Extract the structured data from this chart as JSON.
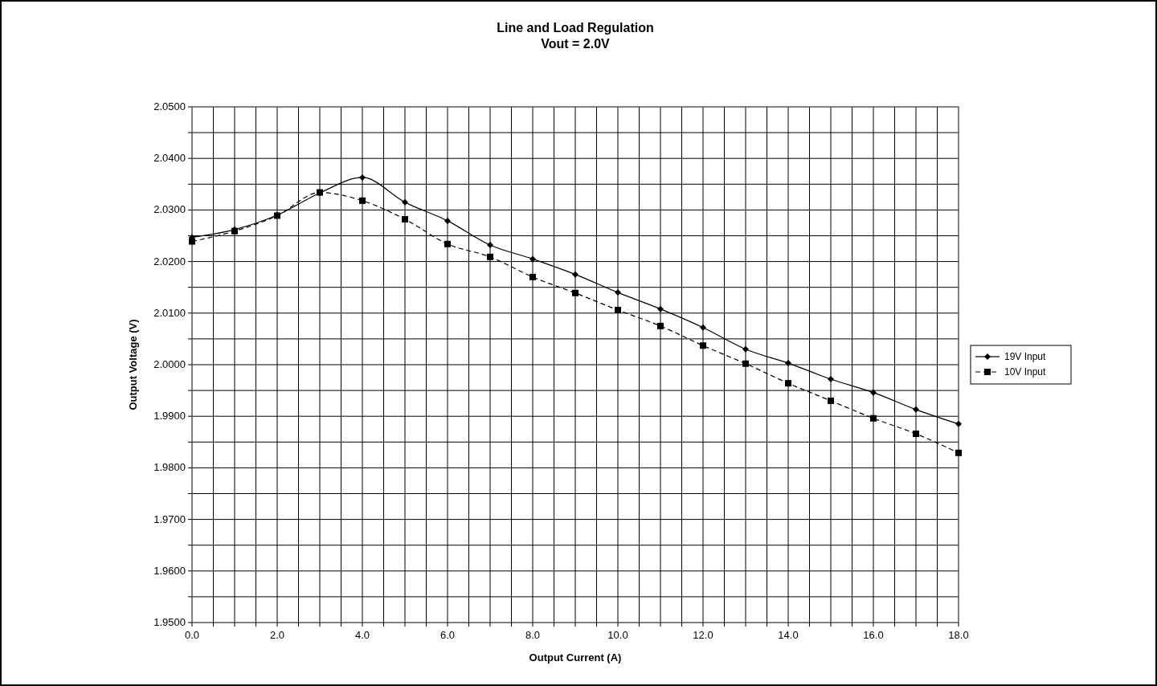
{
  "chart_data": {
    "type": "line",
    "title": "Line and Load Regulation",
    "subtitle": "Vout = 2.0V",
    "xlabel": "Output Current (A)",
    "ylabel": "Output Voltage (V)",
    "x": [
      0,
      1,
      2,
      3,
      4,
      5,
      6,
      7,
      8,
      9,
      10,
      11,
      12,
      13,
      14,
      15,
      16,
      17,
      18
    ],
    "series": [
      {
        "name": "19V Input",
        "color": "#000000",
        "marker": "diamond",
        "line_style": "solid",
        "values": [
          2.0247,
          2.0262,
          2.029,
          2.0333,
          2.0363,
          2.0315,
          2.0279,
          2.0232,
          2.0205,
          2.0175,
          2.014,
          2.0108,
          2.0072,
          2.003,
          2.0003,
          1.9972,
          1.9946,
          1.9913,
          1.9885
        ]
      },
      {
        "name": "10V Input",
        "color": "#000000",
        "marker": "square",
        "line_style": "dashed",
        "values": [
          2.0239,
          2.0259,
          2.0289,
          2.0334,
          2.0318,
          2.0282,
          2.0234,
          2.0209,
          2.017,
          2.0139,
          2.0106,
          2.0075,
          2.0037,
          2.0002,
          1.9964,
          1.993,
          1.9896,
          1.9866,
          1.9829
        ]
      }
    ],
    "xlim": [
      0,
      18
    ],
    "xticks": [
      {
        "value": 0,
        "label": "0.0"
      },
      {
        "value": 0.5,
        "label": null
      },
      {
        "value": 1,
        "label": null
      },
      {
        "value": 1.5,
        "label": null
      },
      {
        "value": 2,
        "label": "2.0"
      },
      {
        "value": 2.5,
        "label": null
      },
      {
        "value": 3,
        "label": null
      },
      {
        "value": 3.5,
        "label": null
      },
      {
        "value": 4,
        "label": "4.0"
      },
      {
        "value": 4.5,
        "label": null
      },
      {
        "value": 5,
        "label": null
      },
      {
        "value": 5.5,
        "label": null
      },
      {
        "value": 6,
        "label": "6.0"
      },
      {
        "value": 6.5,
        "label": null
      },
      {
        "value": 7,
        "label": null
      },
      {
        "value": 7.5,
        "label": null
      },
      {
        "value": 8,
        "label": "8.0"
      },
      {
        "value": 8.5,
        "label": null
      },
      {
        "value": 9,
        "label": null
      },
      {
        "value": 9.5,
        "label": null
      },
      {
        "value": 10,
        "label": "10.0"
      },
      {
        "value": 10.5,
        "label": null
      },
      {
        "value": 11,
        "label": null
      },
      {
        "value": 11.5,
        "label": null
      },
      {
        "value": 12,
        "label": "12.0"
      },
      {
        "value": 12.5,
        "label": null
      },
      {
        "value": 13,
        "label": null
      },
      {
        "value": 13.5,
        "label": null
      },
      {
        "value": 14,
        "label": "14.0"
      },
      {
        "value": 14.5,
        "label": null
      },
      {
        "value": 15,
        "label": null
      },
      {
        "value": 15.5,
        "label": null
      },
      {
        "value": 16,
        "label": "16.0"
      },
      {
        "value": 16.5,
        "label": null
      },
      {
        "value": 17,
        "label": null
      },
      {
        "value": 17.5,
        "label": null
      },
      {
        "value": 18,
        "label": "18.0"
      }
    ],
    "ylim": [
      1.95,
      2.05
    ],
    "yticks": [
      {
        "value": 1.95,
        "label": "1.9500"
      },
      {
        "value": 1.955,
        "label": null
      },
      {
        "value": 1.96,
        "label": "1.9600"
      },
      {
        "value": 1.965,
        "label": null
      },
      {
        "value": 1.97,
        "label": "1.9700"
      },
      {
        "value": 1.975,
        "label": null
      },
      {
        "value": 1.98,
        "label": "1.9800"
      },
      {
        "value": 1.985,
        "label": null
      },
      {
        "value": 1.99,
        "label": "1.9900"
      },
      {
        "value": 1.995,
        "label": null
      },
      {
        "value": 2.0,
        "label": "2.0000"
      },
      {
        "value": 2.005,
        "label": null
      },
      {
        "value": 2.01,
        "label": "2.0100"
      },
      {
        "value": 2.015,
        "label": null
      },
      {
        "value": 2.02,
        "label": "2.0200"
      },
      {
        "value": 2.025,
        "label": null
      },
      {
        "value": 2.03,
        "label": "2.0300"
      },
      {
        "value": 2.035,
        "label": null
      },
      {
        "value": 2.04,
        "label": "2.0400"
      },
      {
        "value": 2.045,
        "label": null
      },
      {
        "value": 2.05,
        "label": "2.0500"
      }
    ],
    "grid": true,
    "legend": "right"
  }
}
